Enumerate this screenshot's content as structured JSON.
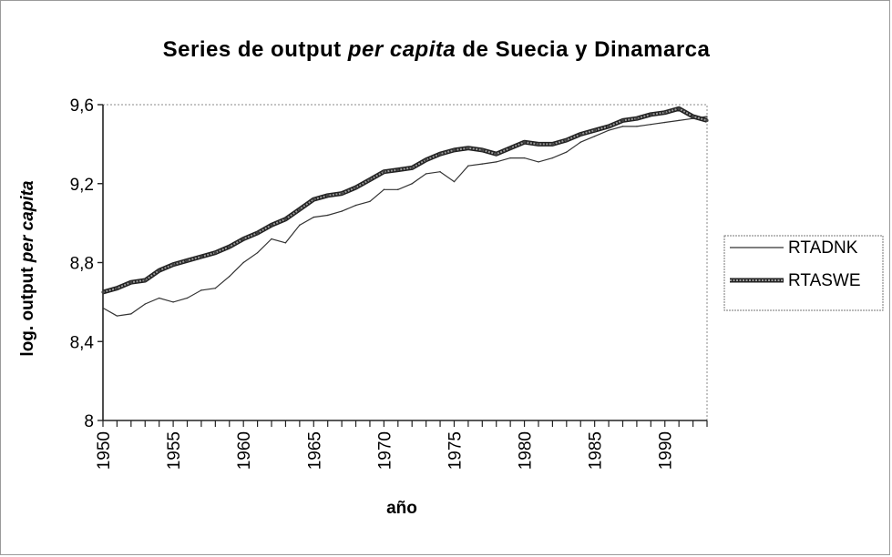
{
  "chart_data": {
    "type": "line",
    "title_parts": [
      {
        "text": "Series de output ",
        "italic": false
      },
      {
        "text": "per capita",
        "italic": true
      },
      {
        "text": " de Suecia y Dinamarca",
        "italic": false
      }
    ],
    "xlabel": "año",
    "ylabel_parts": [
      {
        "text": "log. output ",
        "italic": false
      },
      {
        "text": "per capita",
        "italic": true
      }
    ],
    "ylim": [
      8,
      9.6
    ],
    "xlim": [
      1950,
      1993
    ],
    "y_ticks": [
      8,
      8.4,
      8.8,
      9.2,
      9.6
    ],
    "y_tick_labels": [
      "8",
      "8,4",
      "8,8",
      "9,2",
      "9,6"
    ],
    "x_ticks": [
      1950,
      1955,
      1960,
      1965,
      1970,
      1975,
      1980,
      1985,
      1990
    ],
    "x_tick_labels": [
      "1950",
      "1955",
      "1960",
      "1965",
      "1970",
      "1975",
      "1980",
      "1985",
      "1990"
    ],
    "grid": false,
    "legend_position": "right",
    "x": [
      1950,
      1951,
      1952,
      1953,
      1954,
      1955,
      1956,
      1957,
      1958,
      1959,
      1960,
      1961,
      1962,
      1963,
      1964,
      1965,
      1966,
      1967,
      1968,
      1969,
      1970,
      1971,
      1972,
      1973,
      1974,
      1975,
      1976,
      1977,
      1978,
      1979,
      1980,
      1981,
      1982,
      1983,
      1984,
      1985,
      1986,
      1987,
      1988,
      1989,
      1990,
      1991,
      1992,
      1993
    ],
    "series": [
      {
        "name": "RTADNK",
        "color": "#333333",
        "style": "thin",
        "values": [
          8.57,
          8.53,
          8.54,
          8.59,
          8.62,
          8.6,
          8.62,
          8.66,
          8.67,
          8.73,
          8.8,
          8.85,
          8.92,
          8.9,
          8.99,
          9.03,
          9.04,
          9.06,
          9.09,
          9.11,
          9.17,
          9.17,
          9.2,
          9.25,
          9.26,
          9.21,
          9.29,
          9.3,
          9.31,
          9.33,
          9.33,
          9.31,
          9.33,
          9.36,
          9.41,
          9.44,
          9.47,
          9.49,
          9.49,
          9.5,
          9.51,
          9.52,
          9.53,
          9.54
        ]
      },
      {
        "name": "RTASWE",
        "color": "#555555",
        "style": "thick",
        "values": [
          8.65,
          8.67,
          8.7,
          8.71,
          8.76,
          8.79,
          8.81,
          8.83,
          8.85,
          8.88,
          8.92,
          8.95,
          8.99,
          9.02,
          9.07,
          9.12,
          9.14,
          9.15,
          9.18,
          9.22,
          9.26,
          9.27,
          9.28,
          9.32,
          9.35,
          9.37,
          9.38,
          9.37,
          9.35,
          9.38,
          9.41,
          9.4,
          9.4,
          9.42,
          9.45,
          9.47,
          9.49,
          9.52,
          9.53,
          9.55,
          9.56,
          9.58,
          9.54,
          9.52
        ]
      }
    ]
  }
}
